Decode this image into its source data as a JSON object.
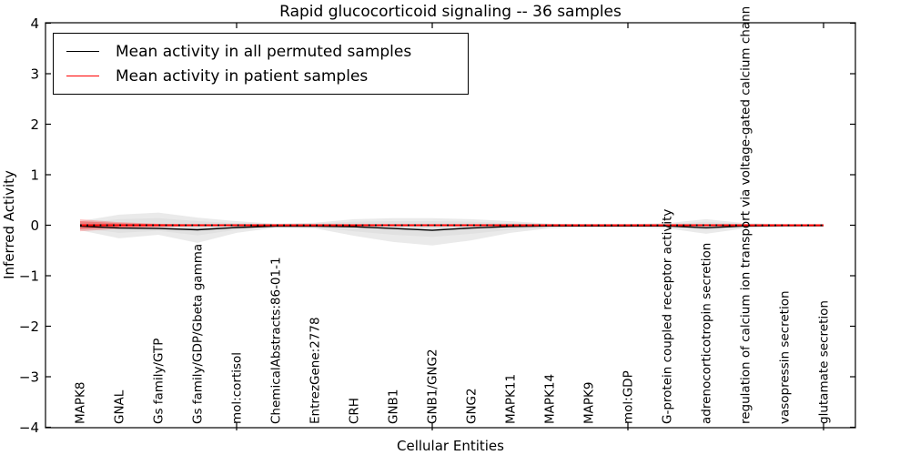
{
  "chart_data": {
    "type": "line",
    "title": "Rapid glucocorticoid signaling -- 36 samples",
    "xlabel": "Cellular Entities",
    "ylabel": "Inferred Activity",
    "ylim": [
      -4,
      4
    ],
    "yticks": [
      4,
      3,
      2,
      1,
      0,
      -1,
      -2,
      -3,
      -4
    ],
    "xtick_category_indices": [
      4,
      9,
      14,
      19
    ],
    "grid": false,
    "legend_position": "upper left",
    "categories": [
      "MAPK8",
      "GNAL",
      "Gs family/GTP",
      "Gs family/GDP/Gbeta gamma",
      "mol:cortisol",
      "ChemicalAbstracts:86-01-1",
      "EntrezGene:2778",
      "CRH",
      "GNB1",
      "GNB1/GNG2",
      "GNG2",
      "MAPK11",
      "MAPK14",
      "MAPK9",
      "mol:GDP",
      "G-protein coupled receptor activity",
      "adrenocorticotropin secretion",
      "regulation of calcium ion transport via voltage-gated calcium chann",
      "vasopressin secretion",
      "glutamate secretion"
    ],
    "series": [
      {
        "name": "Mean activity in all permuted samples",
        "color": "#000000",
        "values": [
          -0.02,
          -0.055,
          -0.065,
          -0.09,
          -0.045,
          -0.02,
          -0.02,
          -0.03,
          -0.065,
          -0.1,
          -0.055,
          -0.025,
          -0.015,
          -0.015,
          -0.015,
          -0.015,
          -0.05,
          -0.015,
          -0.01,
          -0.01
        ]
      },
      {
        "name": "Mean activity in patient samples",
        "color": "#ff0000",
        "values": [
          0,
          0,
          0,
          0,
          0,
          0,
          0,
          0,
          0,
          0,
          0,
          0,
          0,
          0,
          0,
          0,
          0,
          0,
          0,
          0
        ]
      }
    ],
    "bands": [
      {
        "name": "permuted-band-outer",
        "color": "#d9d9d9",
        "opacity": 0.55,
        "upper": [
          0.08,
          0.21,
          0.25,
          0.15,
          0.08,
          0.03,
          0.05,
          0.12,
          0.14,
          0.14,
          0.12,
          0.08,
          0.03,
          0.02,
          0.02,
          0.04,
          0.12,
          0.04,
          0.02,
          0.01
        ],
        "lower": [
          -0.1,
          -0.26,
          -0.19,
          -0.35,
          -0.15,
          -0.05,
          -0.06,
          -0.21,
          -0.33,
          -0.4,
          -0.3,
          -0.15,
          -0.06,
          -0.04,
          -0.04,
          -0.06,
          -0.17,
          -0.06,
          -0.03,
          -0.02
        ]
      },
      {
        "name": "permuted-band-inner",
        "color": "#d9d9d9",
        "opacity": 0.55,
        "upper": [
          0.05,
          0.12,
          0.14,
          0.08,
          0.04,
          0.02,
          0.03,
          0.07,
          0.08,
          0.08,
          0.07,
          0.04,
          0.02,
          0.01,
          0.01,
          0.02,
          0.07,
          0.02,
          0.01,
          0.01
        ],
        "lower": [
          -0.06,
          -0.15,
          -0.11,
          -0.2,
          -0.09,
          -0.03,
          -0.04,
          -0.12,
          -0.19,
          -0.23,
          -0.17,
          -0.09,
          -0.04,
          -0.02,
          -0.02,
          -0.04,
          -0.1,
          -0.04,
          -0.02,
          -0.01
        ]
      },
      {
        "name": "patient-band-outer",
        "color": "#ff0000",
        "opacity": 0.22,
        "upper": [
          0.12,
          0.06,
          0.03,
          0.015,
          0.012,
          0.012,
          0.012,
          0.012,
          0.012,
          0.012,
          0.012,
          0.012,
          0.012,
          0.012,
          0.012,
          0.012,
          0.012,
          0.012,
          0.012,
          0.012
        ],
        "lower": [
          -0.12,
          -0.07,
          -0.04,
          -0.015,
          -0.012,
          -0.012,
          -0.012,
          -0.012,
          -0.012,
          -0.012,
          -0.012,
          -0.012,
          -0.012,
          -0.012,
          -0.012,
          -0.012,
          -0.012,
          -0.012,
          -0.012,
          -0.012
        ]
      },
      {
        "name": "patient-band-inner",
        "color": "#ff0000",
        "opacity": 0.28,
        "upper": [
          0.08,
          0.04,
          0.02,
          0.008,
          0.006,
          0.006,
          0.006,
          0.006,
          0.006,
          0.006,
          0.006,
          0.006,
          0.006,
          0.006,
          0.006,
          0.006,
          0.006,
          0.006,
          0.006,
          0.006
        ],
        "lower": [
          -0.08,
          -0.04,
          -0.02,
          -0.008,
          -0.006,
          -0.006,
          -0.006,
          -0.006,
          -0.006,
          -0.006,
          -0.006,
          -0.006,
          -0.006,
          -0.006,
          -0.006,
          -0.006,
          -0.006,
          -0.006,
          -0.006,
          -0.006
        ]
      }
    ],
    "zero_line": {
      "style": "dotted",
      "color": "#000000",
      "y": 0
    }
  },
  "colors": {
    "frame": "#000000",
    "background": "#ffffff"
  }
}
